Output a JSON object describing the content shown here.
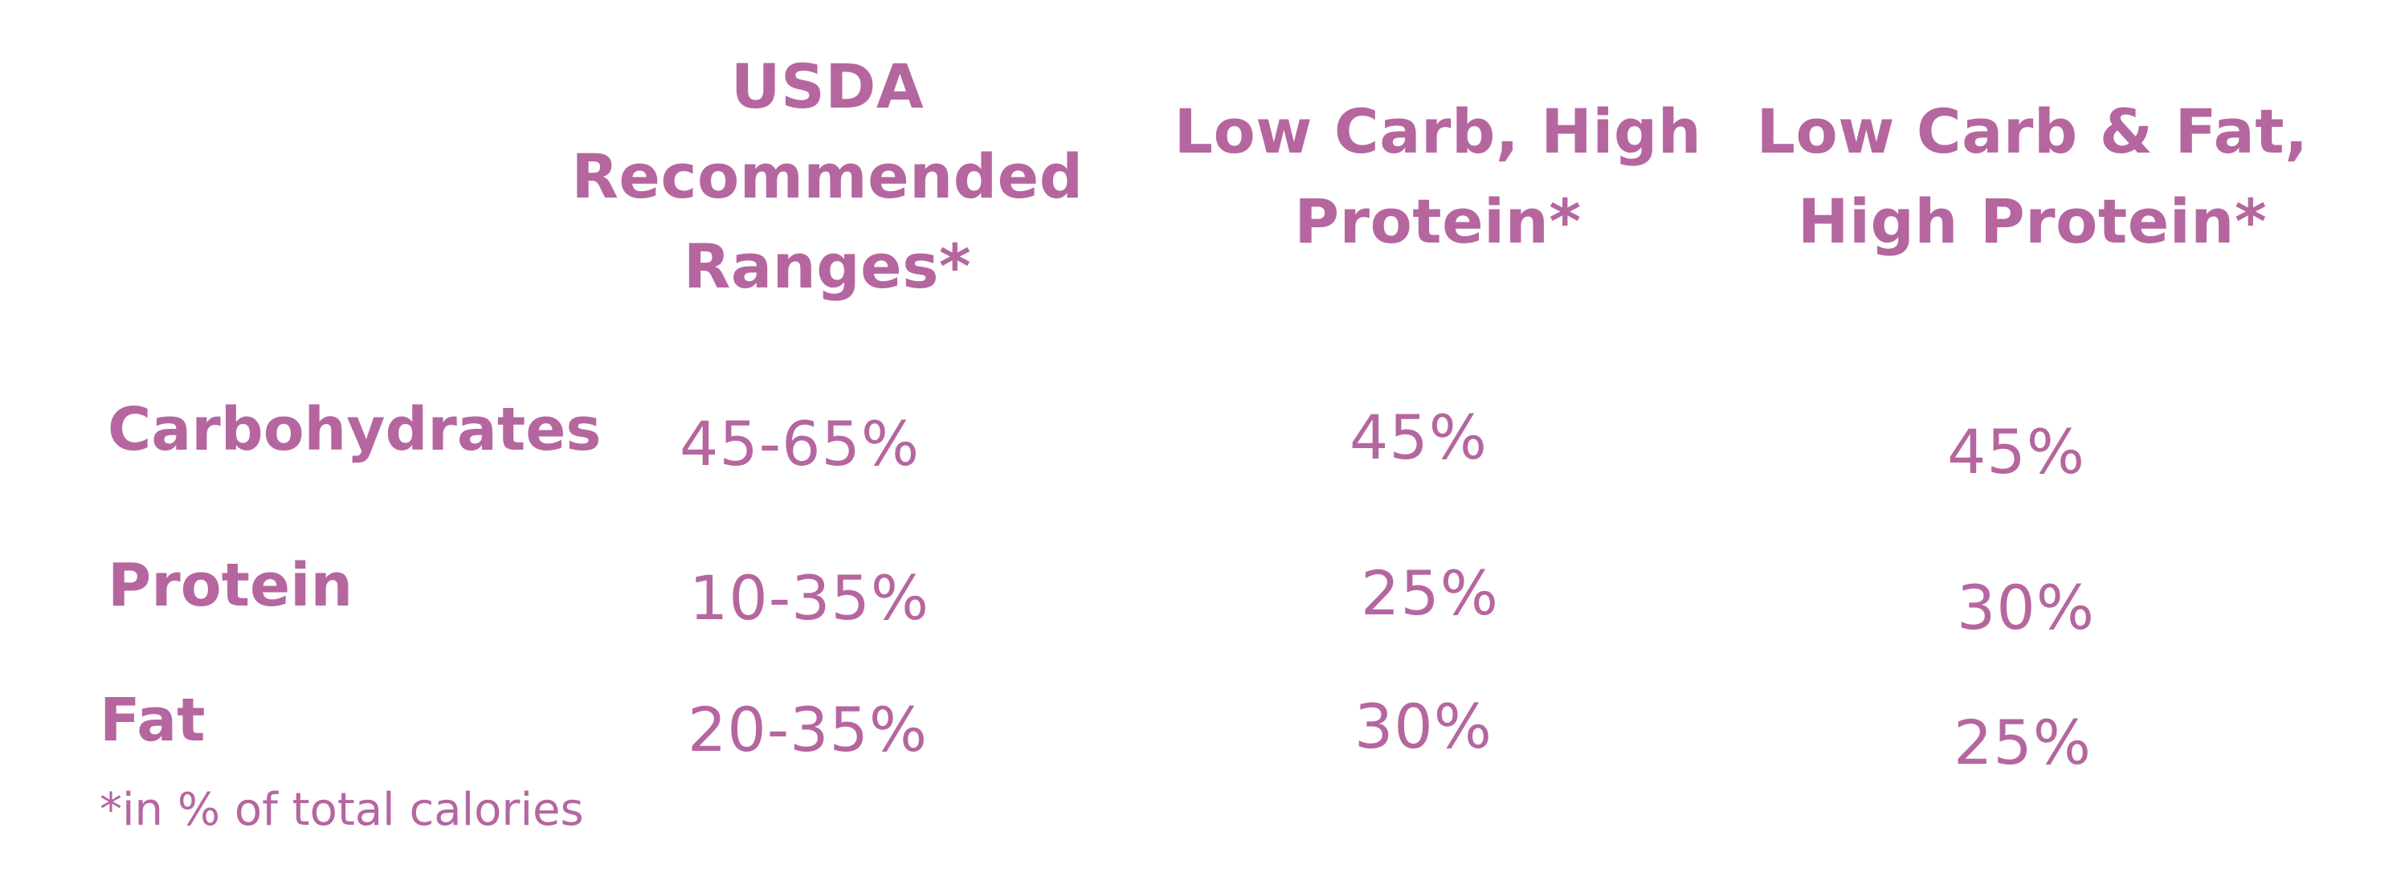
{
  "colors": {
    "text": "#b5669f",
    "background": "#ffffff"
  },
  "chart_data": {
    "type": "table",
    "columns": [
      "USDA Recommended Ranges*",
      "Low Carb, High Protein*",
      "Low Carb & Fat, High Protein*"
    ],
    "rows": [
      {
        "label": "Carbohydrates",
        "values": [
          "45-65%",
          "45%",
          "45%"
        ]
      },
      {
        "label": "Protein",
        "values": [
          "10-35%",
          "25%",
          "30%"
        ]
      },
      {
        "label": "Fat",
        "values": [
          "20-35%",
          "30%",
          "25%"
        ]
      }
    ],
    "footnote": "*in % of total calories"
  }
}
